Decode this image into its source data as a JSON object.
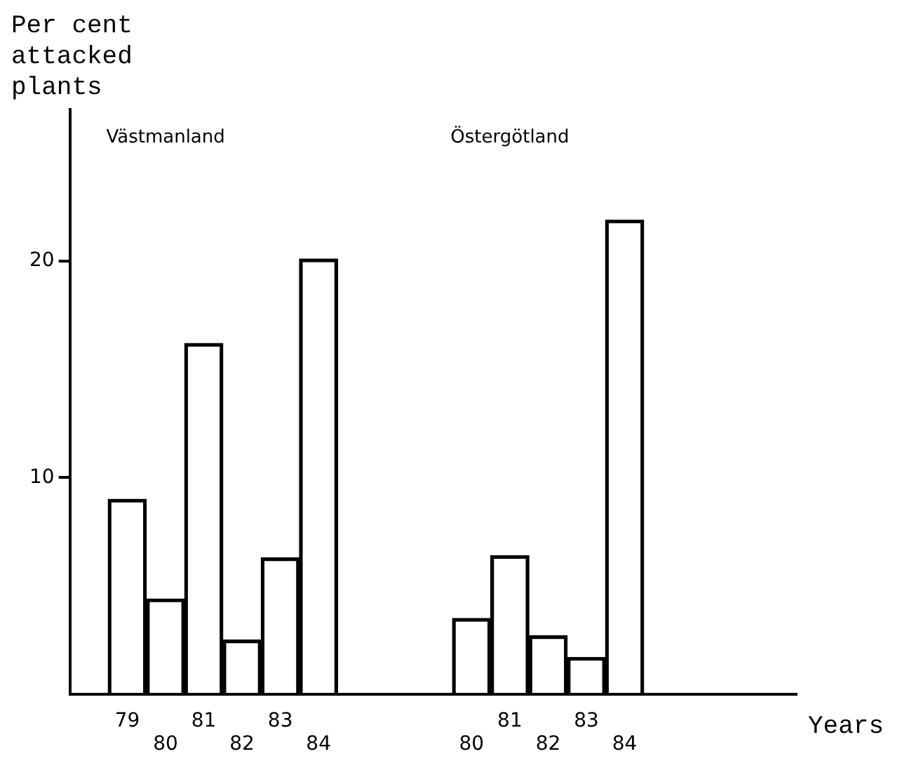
{
  "chart_data": {
    "type": "bar",
    "ylabel": "Per cent attacked plants",
    "xlabel": "Years",
    "annotations": [
      "Västmanland",
      "Östergötland"
    ],
    "categories": [
      null,
      "79",
      "80",
      "81",
      "82",
      "83",
      "84",
      null,
      null,
      null,
      "80",
      "81",
      "82",
      "83",
      "84",
      null,
      null,
      null,
      null
    ],
    "values": [
      null,
      9.0,
      4.4,
      16.2,
      2.5,
      6.3,
      20.1,
      null,
      null,
      null,
      3.5,
      6.4,
      2.7,
      1.7,
      21.9,
      null,
      null,
      null,
      null
    ],
    "color": "#000000",
    "ylim": [
      0,
      27
    ],
    "yticks": [
      10,
      20
    ],
    "grid": false,
    "legend": false
  }
}
